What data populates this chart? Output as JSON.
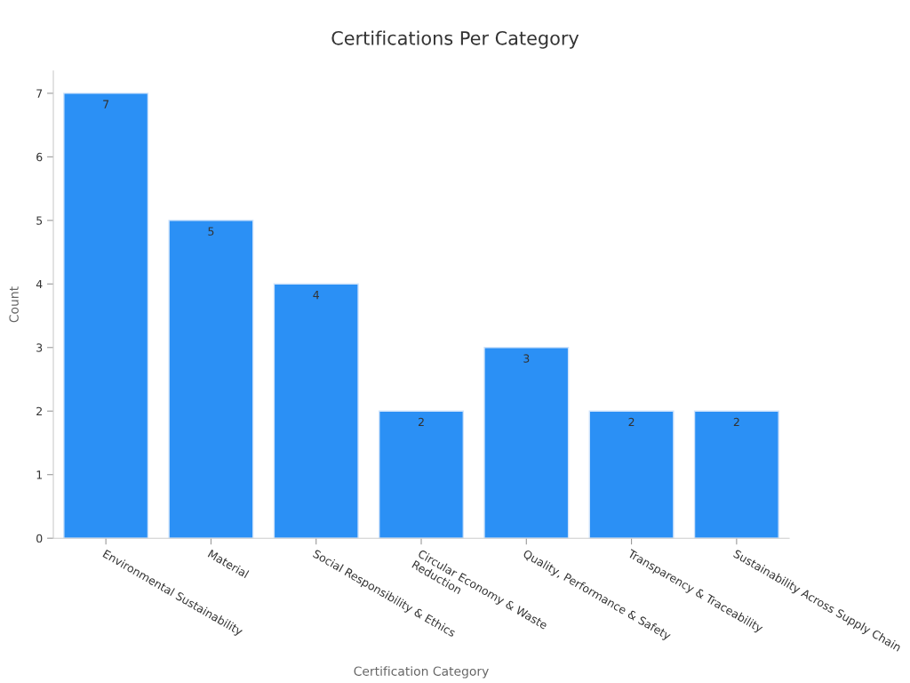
{
  "chart_data": {
    "type": "bar",
    "title": "Certifications Per Category",
    "xlabel": "Certification Category",
    "ylabel": "Count",
    "categories": [
      "Environmental Sustainability",
      "Material",
      "Social Responsibility & Ethics",
      "Circular Economy & Waste\nReduction",
      "Quality, Performance & Safety",
      "Transparency & Traceability",
      "Sustainability Across Supply Chain"
    ],
    "values": [
      7,
      5,
      4,
      2,
      3,
      2,
      2
    ],
    "color": "#2b90f5",
    "ylim": [
      0,
      7.35
    ],
    "yticks": [
      0,
      1,
      2,
      3,
      4,
      5,
      6,
      7
    ],
    "data_labels": true,
    "grid": false,
    "legend": false
  }
}
